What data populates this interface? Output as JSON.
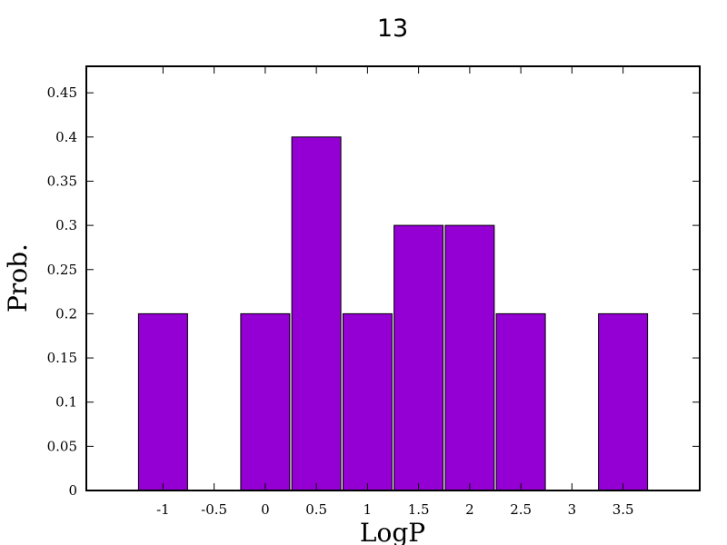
{
  "chart_data": {
    "type": "bar",
    "title": "13",
    "xlabel": "LogP",
    "ylabel": "Prob.",
    "x": [
      -1,
      0,
      0.5,
      1,
      1.5,
      2,
      2.5,
      3.5
    ],
    "values": [
      0.2,
      0.2,
      0.4,
      0.2,
      0.3,
      0.3,
      0.2,
      0.2
    ],
    "bin_width": 0.5,
    "xlim": [
      -1.75,
      4.25
    ],
    "ylim": [
      0,
      0.48
    ],
    "xticks": [
      "-1",
      "-0.5",
      "0",
      "0.5",
      "1",
      "1.5",
      "2",
      "2.5",
      "3",
      "3.5"
    ],
    "yticks": [
      "0",
      "0.05",
      "0.1",
      "0.15",
      "0.2",
      "0.25",
      "0.3",
      "0.35",
      "0.4",
      "0.45"
    ],
    "grid": false,
    "bar_color": "#9400d3"
  }
}
